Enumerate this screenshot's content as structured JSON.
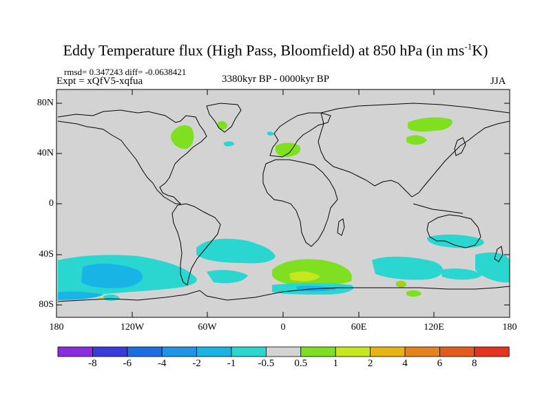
{
  "title": "Eddy Temperature flux (High Pass, Bloomfield) at 850 hPa (in ms",
  "title_sup": "-1",
  "title_end": "K)",
  "stats_line": "rmsd= 0.347243 diff= -0.0638421",
  "experiment": "Expt = xQfV5-xqfua",
  "period": "3380kyr BP - 0000kyr BP",
  "season": "JJA",
  "lat_labels": [
    "80N",
    "40N",
    "0",
    "40S",
    "80S"
  ],
  "lon_labels": [
    "180",
    "120W",
    "60W",
    "0",
    "60E",
    "120E",
    "180"
  ],
  "colorbar": {
    "labels": [
      "-8",
      "-6",
      "-4",
      "-2",
      "-1",
      "-0.5",
      "0.5",
      "1",
      "2",
      "4",
      "6",
      "8"
    ],
    "colors": [
      "#8a2be2",
      "#3a3ade",
      "#1c6ee6",
      "#1e96e8",
      "#19b4e6",
      "#2ad6d0",
      "#d3d3d3",
      "#7ee01e",
      "#c8e61e",
      "#e6b414",
      "#e6821e",
      "#e65a1e",
      "#e6321e"
    ]
  },
  "map_colors": {
    "background": "#d3d3d3",
    "cyan": "#2ad6d0",
    "lightblue": "#19b4e6",
    "green": "#7ee01e",
    "yellow": "#c8e61e",
    "orange": "#e6b414"
  }
}
